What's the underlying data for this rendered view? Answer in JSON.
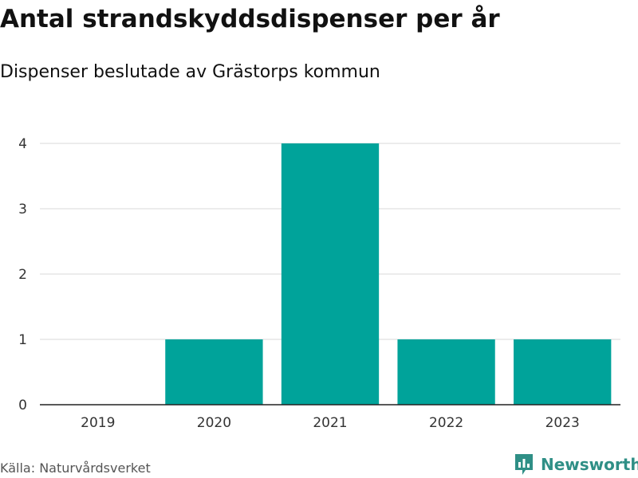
{
  "colors": {
    "bar": "#00a39a",
    "grid": "#d8d8d8",
    "axis": "#222222",
    "brand": "#2f8f86"
  },
  "source": "Källa: Naturvårdsverket",
  "brand": {
    "name": "Newsworthy",
    "icon": "bar-chart-logo-icon"
  },
  "chart_data": {
    "type": "bar",
    "title": "Antal strandskyddsdispenser per år",
    "subtitle": "Dispenser beslutade av Grästorps kommun",
    "categories": [
      "2019",
      "2020",
      "2021",
      "2022",
      "2023"
    ],
    "values": [
      0,
      1,
      4,
      1,
      1
    ],
    "yticks": [
      "0",
      "1",
      "2",
      "3",
      "4"
    ],
    "ylim": [
      0,
      4
    ],
    "grid": true,
    "legend": "none"
  }
}
